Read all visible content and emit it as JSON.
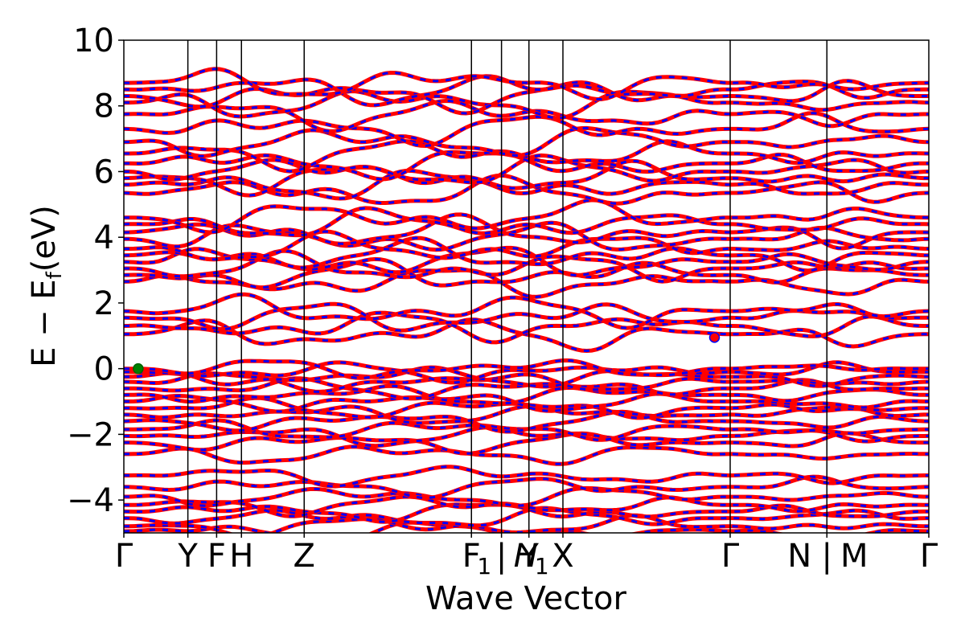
{
  "chart_data": {
    "type": "line",
    "title": "",
    "xlabel": "Wave Vector",
    "ylabel": "E − E",
    "ylabel_sub": "f",
    "ylabel_unit": "(eV)",
    "ylim": [
      -5,
      10
    ],
    "yticks": [
      -4,
      -2,
      0,
      2,
      4,
      6,
      8,
      10
    ],
    "ytick_labels": [
      "−4",
      "−2",
      "0",
      "2",
      "4",
      "6",
      "8",
      "10"
    ],
    "xlim": [
      0,
      6.16
    ],
    "grid": false,
    "kpoints": [
      {
        "x": 0.0,
        "label": "Γ"
      },
      {
        "x": 0.49,
        "label": "Y"
      },
      {
        "x": 0.71,
        "label": "F"
      },
      {
        "x": 0.9,
        "label": "H"
      },
      {
        "x": 1.38,
        "label": "Z"
      },
      {
        "x": 2.66,
        "label": "F"
      },
      {
        "x": 2.89,
        "label": "|"
      },
      {
        "x": 3.1,
        "label": "Y"
      },
      {
        "x": 3.36,
        "label": "X"
      },
      {
        "x": 4.64,
        "label": "Γ"
      },
      {
        "x": 5.38,
        "label": "N"
      },
      {
        "x": 5.38,
        "label": "|"
      },
      {
        "x": 5.38,
        "label": "M"
      },
      {
        "x": 6.16,
        "label": "Γ"
      }
    ],
    "kpoint_subscripts": [
      {
        "x": 2.66,
        "label": "1"
      },
      {
        "x": 3.1,
        "label": "H"
      },
      {
        "x": 3.1,
        "label": "1"
      }
    ],
    "series": [
      {
        "color": "#ff0000",
        "style": "solid"
      },
      {
        "color": "#0000ff",
        "style": "dashed"
      }
    ],
    "bands_y_at_gamma": [
      -4.95,
      -4.8,
      -4.55,
      -4.35,
      -4.15,
      -3.9,
      -3.6,
      -3.25,
      -2.6,
      -2.25,
      -2.05,
      -1.85,
      -1.6,
      -1.4,
      -1.2,
      -1.0,
      -0.8,
      -0.6,
      -0.4,
      -0.25,
      -0.1,
      0.0,
      1.05,
      1.3,
      1.55,
      1.75,
      2.65,
      2.85,
      3.05,
      3.25,
      3.45,
      3.65,
      3.95,
      4.15,
      4.4,
      4.6,
      5.35,
      5.6,
      5.8,
      6.0,
      6.25,
      6.55,
      6.9,
      7.3,
      7.75,
      8.1,
      8.3,
      8.5,
      8.7
    ],
    "points": [
      {
        "name": "valence-band-maximum",
        "x": 0.11,
        "y": 0.0,
        "color": "#008000"
      },
      {
        "name": "conduction-band-minimum",
        "x": 4.52,
        "y": 0.95,
        "color": "#ff0000"
      }
    ]
  }
}
